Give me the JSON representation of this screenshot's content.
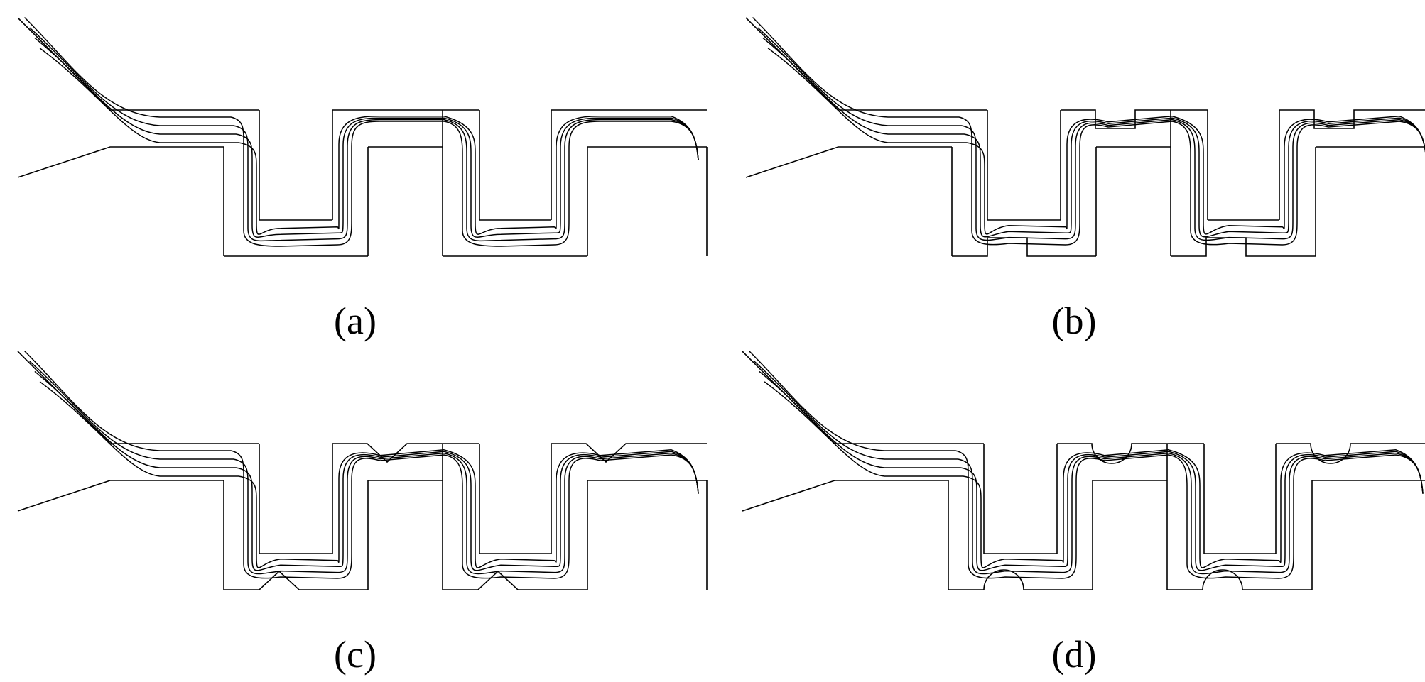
{
  "panels": [
    {
      "id": "a",
      "label": "(a)",
      "obstacle": "none"
    },
    {
      "id": "b",
      "label": "(b)",
      "obstacle": "rectangle"
    },
    {
      "id": "c",
      "label": "(c)",
      "obstacle": "triangle"
    },
    {
      "id": "d",
      "label": "(d)",
      "obstacle": "semicircle"
    }
  ]
}
